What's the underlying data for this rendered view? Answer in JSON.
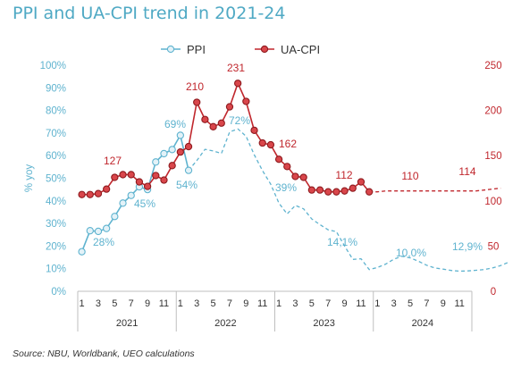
{
  "title": "PPI and UA-CPI trend in 2021-24",
  "source": "Source: NBU, Worldbank, UEO calculations",
  "chart_data": {
    "type": "line",
    "title": "PPI and UA-CPI trend in 2021-24",
    "legend": {
      "placement": "top-center",
      "entries": [
        "PPI",
        "UA-CPI"
      ]
    },
    "grid": false,
    "y_left": {
      "label": "% yoy",
      "min": 0,
      "max": 100,
      "ticks": [
        "0%",
        "10%",
        "20%",
        "30%",
        "40%",
        "50%",
        "60%",
        "70%",
        "80%",
        "90%",
        "100%"
      ]
    },
    "y_right": {
      "label": "",
      "min": 0,
      "max": 250,
      "ticks": [
        "0",
        "50",
        "100",
        "150",
        "200",
        "250"
      ]
    },
    "x": {
      "month_ticks": [
        "1",
        "3",
        "5",
        "7",
        "9",
        "11"
      ],
      "years": [
        "2021",
        "2022",
        "2023",
        "2024"
      ]
    },
    "colors": {
      "ppi": "#5fb3cf",
      "cpi": "#c0272d"
    },
    "series": [
      {
        "name": "PPI",
        "axis": "left",
        "solid": [
          17.5,
          26.8,
          26.5,
          27.8,
          33.1,
          39.0,
          42.4,
          46.2,
          45.0,
          57.2,
          60.9,
          62.7,
          69.0,
          53.5
        ],
        "dashed": [
          53.5,
          57.8,
          62.8,
          62.1,
          61.0,
          70.5,
          71.8,
          68.6,
          60.4,
          53.4,
          47.4,
          39.0,
          34.2,
          38.0,
          36.5,
          32.0,
          29.5,
          27.2,
          26.4,
          20.0,
          14.1,
          14.4,
          9.6,
          10.5,
          12.0,
          14.2,
          15.5,
          14.8,
          13.3,
          11.5,
          10.3,
          9.8,
          9.2,
          8.9,
          9.0,
          9.3,
          9.6,
          10.3,
          11.4,
          12.9
        ]
      },
      {
        "name": "UA-CPI",
        "axis": "right",
        "solid": [
          107,
          107,
          108,
          113,
          126,
          129,
          129,
          121,
          116,
          128,
          123,
          139,
          154,
          160,
          209,
          190,
          182,
          186,
          204,
          230,
          210,
          178,
          164,
          162,
          146,
          138,
          127,
          126,
          112,
          112,
          110,
          110,
          111,
          114,
          121,
          110
        ],
        "dashed": [
          110,
          110,
          111,
          111,
          111,
          111,
          111,
          111,
          111,
          111,
          111,
          111,
          111,
          111,
          112,
          113,
          114
        ]
      }
    ],
    "annotations": [
      {
        "text": "28%",
        "series": "PPI"
      },
      {
        "text": "45%",
        "series": "PPI"
      },
      {
        "text": "69%",
        "series": "PPI"
      },
      {
        "text": "54%",
        "series": "PPI"
      },
      {
        "text": "72%",
        "series": "PPI"
      },
      {
        "text": "39%",
        "series": "PPI"
      },
      {
        "text": "14,1%",
        "series": "PPI"
      },
      {
        "text": "10,0%",
        "series": "PPI"
      },
      {
        "text": "12,9%",
        "series": "PPI"
      },
      {
        "text": "127",
        "series": "UA-CPI"
      },
      {
        "text": "210",
        "series": "UA-CPI"
      },
      {
        "text": "231",
        "series": "UA-CPI"
      },
      {
        "text": "162",
        "series": "UA-CPI"
      },
      {
        "text": "112",
        "series": "UA-CPI"
      },
      {
        "text": "110",
        "series": "UA-CPI"
      },
      {
        "text": "114",
        "series": "UA-CPI"
      }
    ]
  }
}
